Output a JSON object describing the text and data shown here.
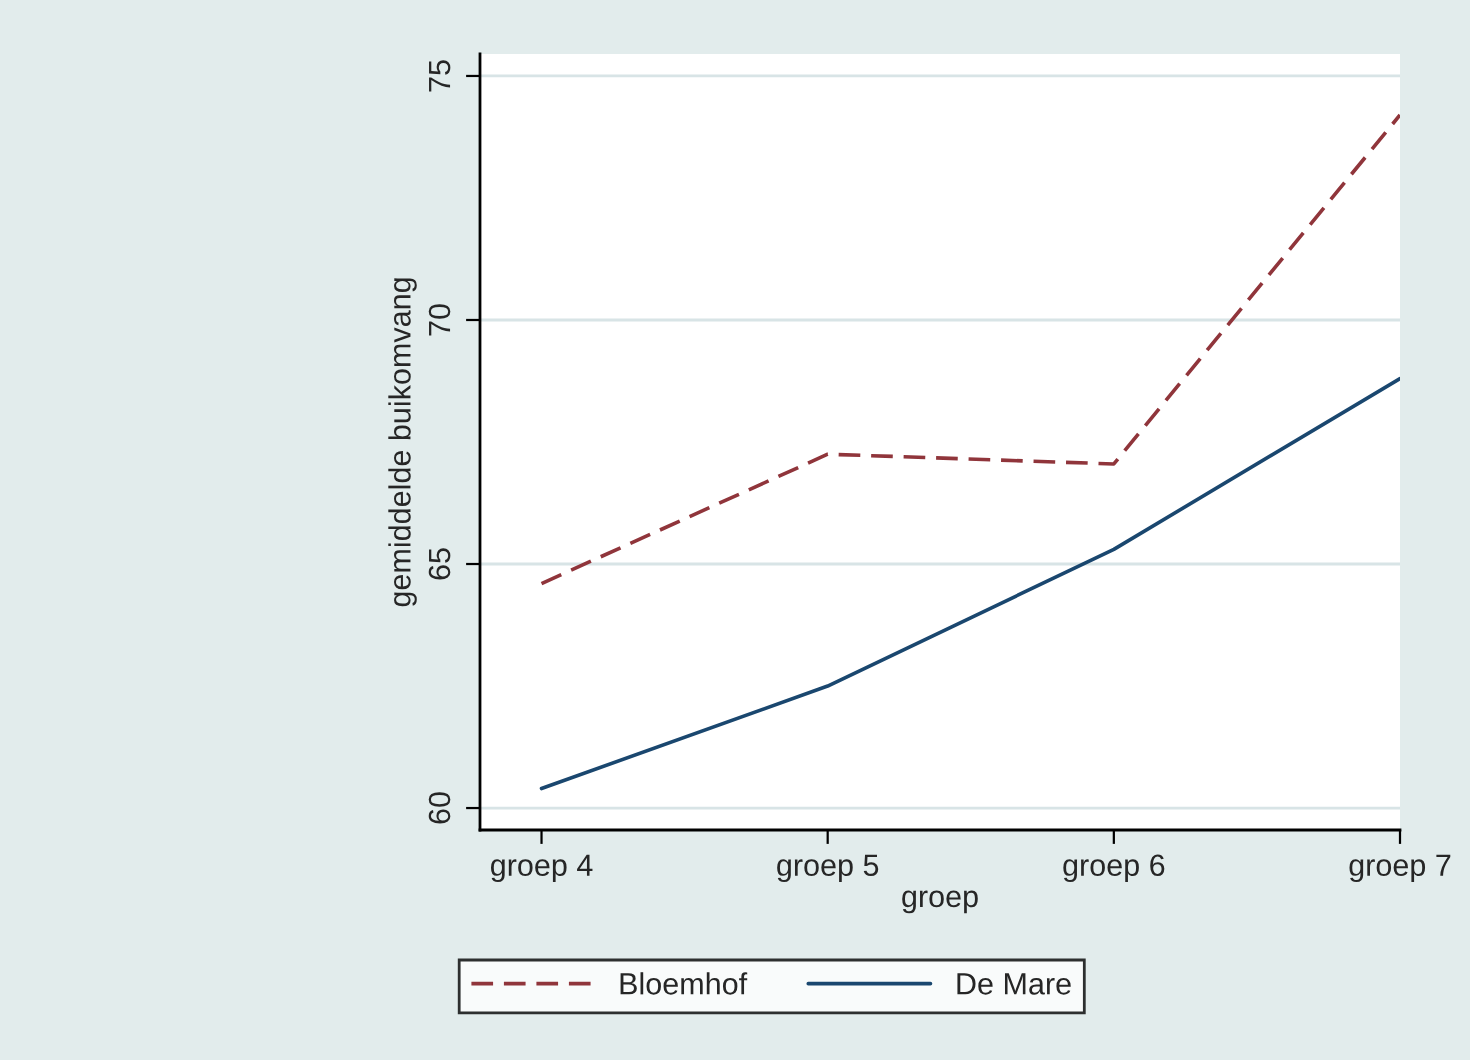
{
  "chart_data": {
    "type": "line",
    "xlabel": "groep",
    "ylabel": "gemiddelde buikomvang",
    "categories": [
      "groep 4",
      "groep 5",
      "groep 6",
      "groep 7"
    ],
    "series": [
      {
        "name": "Bloemhof",
        "color": "#90353b",
        "line_style": "dashed",
        "values": [
          64.6,
          67.25,
          67.05,
          74.2
        ]
      },
      {
        "name": "De Mare",
        "color": "#1a476f",
        "line_style": "solid",
        "values": [
          60.4,
          62.5,
          65.3,
          68.8
        ]
      }
    ],
    "ylim": [
      59.55,
      75.45
    ],
    "yticks": [
      60,
      65,
      70,
      75
    ],
    "grid": "y",
    "legend": "bottom",
    "marker": "none"
  }
}
